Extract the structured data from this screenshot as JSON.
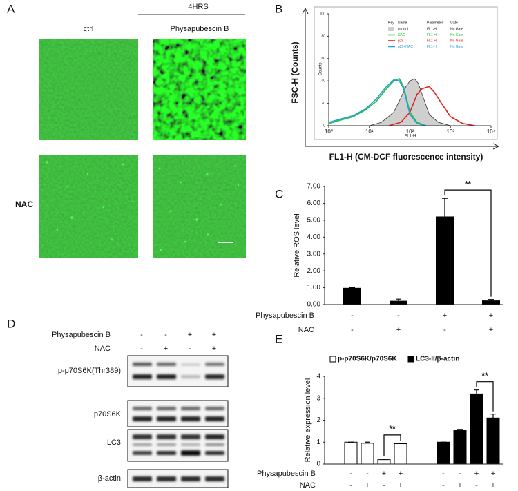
{
  "panel_labels": [
    "A",
    "B",
    "C",
    "D",
    "E"
  ],
  "panel_a": {
    "header": "4HRS",
    "columns": [
      "ctrl",
      "Physapubescin B"
    ],
    "row_label": "NAC"
  },
  "panel_d": {
    "treatments": [
      {
        "name": "Physapubescin B",
        "signs": [
          "-",
          "-",
          "+",
          "+"
        ]
      },
      {
        "name": "NAC",
        "signs": [
          "-",
          "+",
          "-",
          "+"
        ]
      }
    ],
    "blots": [
      "p-p70S6K(Thr389)",
      "p70S6K",
      "LC3",
      "β-actin"
    ]
  },
  "chart_data": [
    {
      "type": "line",
      "xlabel": "FL1-H (CM-DCF fluorescence intensity)",
      "ylabel": "FSC-H (Counts)",
      "inner_xlabel": "FL1-H",
      "inner_ylabel": "Counts",
      "log_x": true,
      "xlim": [
        1,
        10000
      ],
      "xticks": [
        {
          "value": 1,
          "label": "10⁰"
        },
        {
          "value": 10,
          "label": "10¹"
        },
        {
          "value": 100,
          "label": "10²"
        },
        {
          "value": 1000,
          "label": "10³"
        },
        {
          "value": 10000,
          "label": "10⁴"
        }
      ],
      "ylim": [
        0,
        100
      ],
      "yticks": [
        0,
        20,
        40,
        60,
        80,
        100
      ],
      "legend_header": [
        "Key",
        "Name",
        "Parameter",
        "Gate"
      ],
      "series": [
        {
          "name": "control",
          "color": "#333333",
          "fill": "#cfcfcf",
          "parameter": "FL1-H",
          "gate": "No Gate",
          "x": [
            10,
            20,
            40,
            60,
            80,
            100,
            130,
            160,
            200,
            300,
            500,
            1000
          ],
          "values": [
            0,
            3,
            12,
            25,
            35,
            40,
            42,
            38,
            28,
            10,
            3,
            0
          ]
        },
        {
          "name": "NAC",
          "color": "#22c43a",
          "parameter": "FL1-H",
          "gate": "No Gate",
          "x": [
            1,
            2,
            4,
            8,
            15,
            25,
            40,
            55,
            70,
            100,
            150,
            250
          ],
          "values": [
            2,
            5,
            8,
            14,
            22,
            32,
            40,
            42,
            35,
            12,
            3,
            0
          ]
        },
        {
          "name": "p25",
          "color": "#e0201e",
          "parameter": "FL1-H",
          "gate": "No Gate",
          "x": [
            30,
            60,
            100,
            150,
            200,
            300,
            400,
            600,
            1000,
            2000,
            4000
          ],
          "values": [
            0,
            3,
            12,
            28,
            33,
            35,
            30,
            20,
            8,
            2,
            0
          ]
        },
        {
          "name": "p25+NAC",
          "color": "#2a9ee0",
          "parameter": "FL1-H",
          "gate": "No Gate",
          "x": [
            1,
            2,
            4,
            8,
            15,
            25,
            40,
            55,
            70,
            100,
            150,
            250
          ],
          "values": [
            3,
            6,
            9,
            15,
            24,
            34,
            41,
            40,
            33,
            10,
            2,
            0
          ]
        }
      ]
    },
    {
      "type": "bar",
      "ylabel": "Relative ROS level",
      "ylim": [
        0,
        7
      ],
      "yticks": [
        {
          "value": 0,
          "label": "0.00"
        },
        {
          "value": 1,
          "label": "1.00"
        },
        {
          "value": 2,
          "label": "2.00"
        },
        {
          "value": 3,
          "label": "3.00"
        },
        {
          "value": 4,
          "label": "4.00"
        },
        {
          "value": 5,
          "label": "5.00"
        },
        {
          "value": 6,
          "label": "6.00"
        },
        {
          "value": 7,
          "label": "7.00"
        }
      ],
      "color": "#000000",
      "values": [
        0.97,
        0.2,
        5.2,
        0.22
      ],
      "errors": [
        0.03,
        0.12,
        1.1,
        0.08
      ],
      "treatments": [
        {
          "name": "Physapubescin B",
          "signs": [
            "-",
            "-",
            "+",
            "+"
          ]
        },
        {
          "name": "NAC",
          "signs": [
            "-",
            "+",
            "-",
            "+"
          ]
        }
      ],
      "significance": [
        {
          "label": "**",
          "bars": [
            2,
            3
          ]
        }
      ]
    },
    {
      "type": "bar",
      "ylabel": "Relative expression level",
      "ylim": [
        0,
        4
      ],
      "yticks": [
        0,
        1,
        2,
        3,
        4
      ],
      "series": [
        {
          "name": "p-p70S6K/p70S6K",
          "color": "#ffffff",
          "values": [
            1.0,
            0.95,
            0.2,
            0.93
          ],
          "errors": [
            0,
            0.05,
            0.03,
            0.02
          ]
        },
        {
          "name": "LC3-II/β-actin",
          "color": "#000000",
          "values": [
            1.0,
            1.55,
            3.2,
            2.1
          ],
          "errors": [
            0,
            0.03,
            0.18,
            0.18
          ]
        }
      ],
      "treatments": [
        {
          "name": "Physapubescin B",
          "signs": [
            "-",
            "-",
            "+",
            "+",
            "-",
            "-",
            "+",
            "+"
          ]
        },
        {
          "name": "NAC",
          "signs": [
            "-",
            "+",
            "-",
            "+",
            "-",
            "+",
            "-",
            "+"
          ]
        }
      ],
      "significance": [
        {
          "label": "**",
          "series": 0,
          "bars": [
            2,
            3
          ]
        },
        {
          "label": "**",
          "series": 1,
          "bars": [
            2,
            3
          ]
        }
      ]
    }
  ]
}
